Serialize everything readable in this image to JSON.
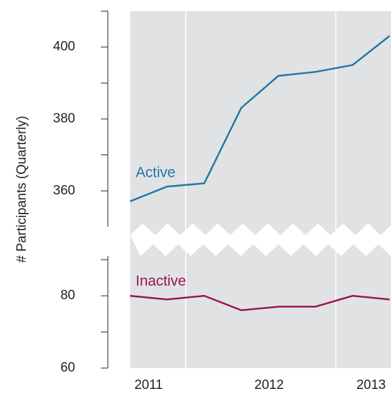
{
  "chart_data": {
    "type": "line",
    "ylabel": "# Participants (Quarterly)",
    "x": [
      0,
      1,
      2,
      3,
      4,
      5,
      6,
      7
    ],
    "xlim": [
      0,
      7
    ],
    "xticks": [
      {
        "value": 0.5,
        "label": "2011"
      },
      {
        "value": 3.75,
        "label": "2012"
      },
      {
        "value": 6.5,
        "label": "2013"
      }
    ],
    "vgrid": [
      1.5,
      5.55
    ],
    "panels": [
      {
        "ylim": [
          350,
          410
        ],
        "yticks": [
          360,
          380,
          400
        ],
        "minor_yticks": [
          370,
          390,
          410
        ]
      },
      {
        "ylim": [
          60,
          91
        ],
        "yticks": [
          60,
          80
        ],
        "minor_yticks": [
          70,
          90
        ]
      }
    ],
    "series": [
      {
        "name": "Active",
        "color": "#1f78a8",
        "panel": 0,
        "values": [
          357.1,
          361.2,
          362.1,
          383.1,
          392,
          393.1,
          395,
          403.1
        ]
      },
      {
        "name": "Inactive",
        "color": "#9c1452",
        "panel": 1,
        "values": [
          80,
          79,
          80,
          76,
          77,
          77,
          80,
          79
        ]
      }
    ]
  }
}
